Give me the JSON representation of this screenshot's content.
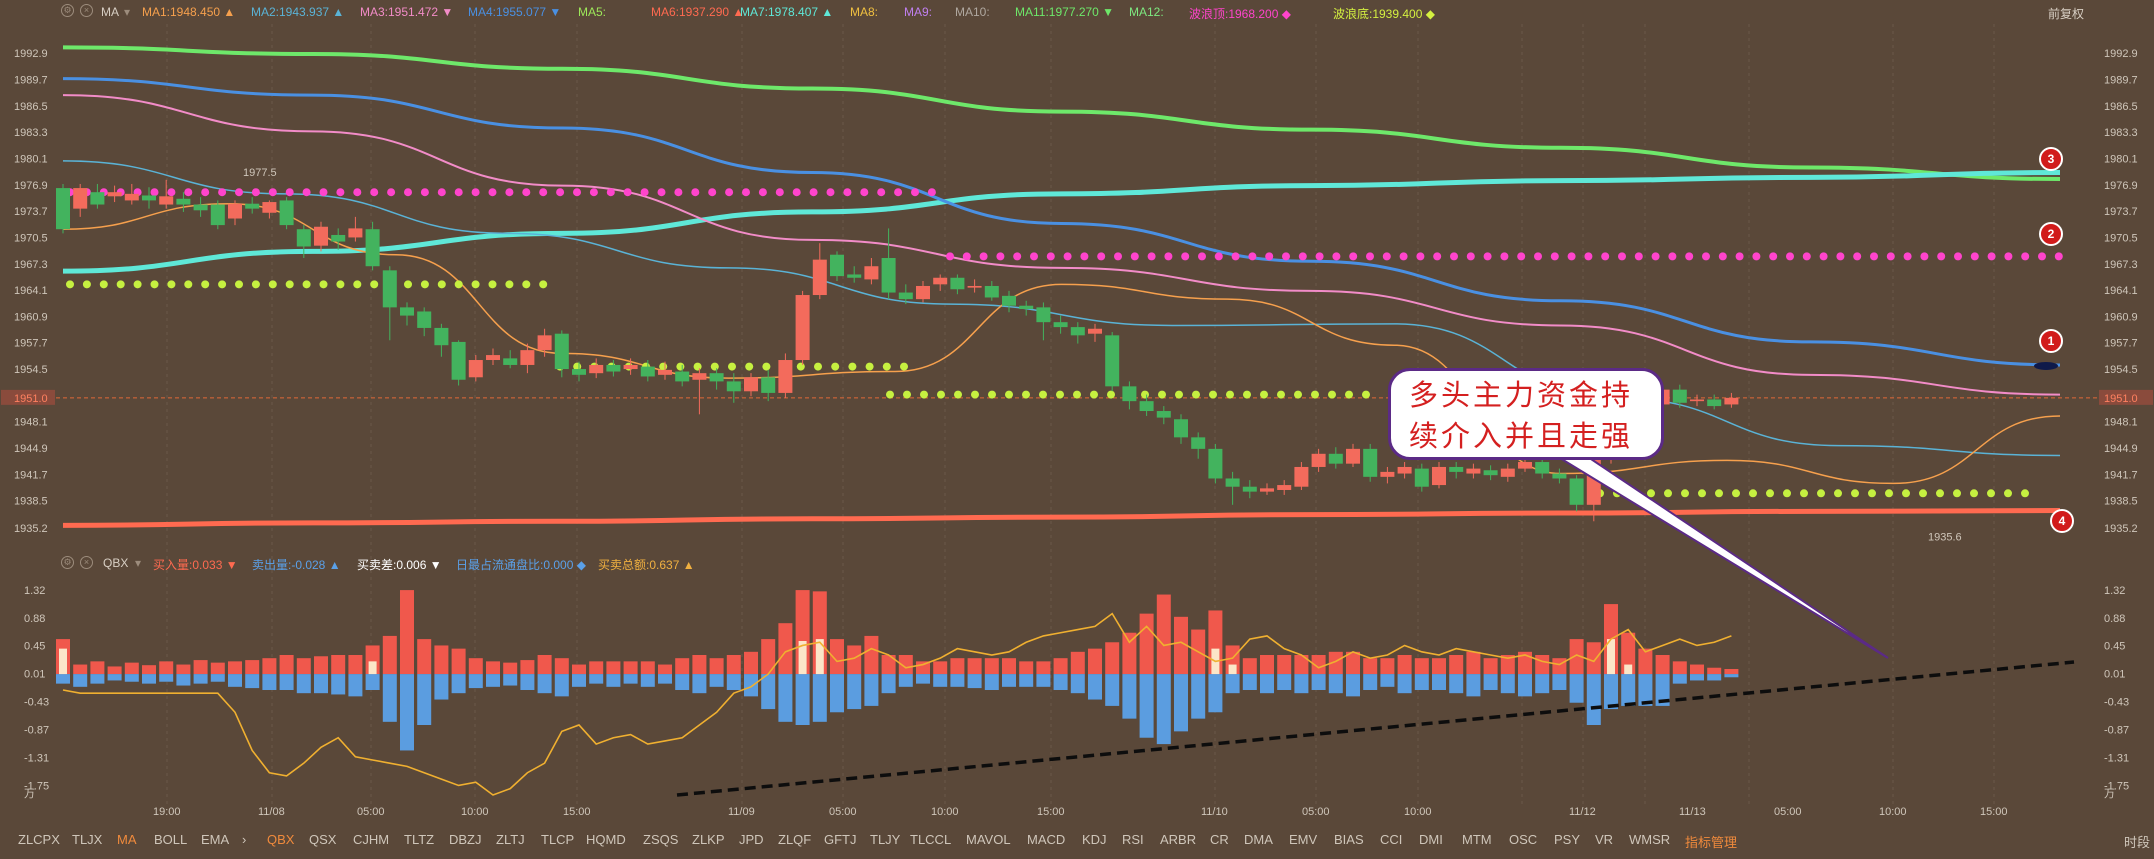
{
  "top_legend": {
    "indicator": "MA",
    "items": [
      {
        "label": "MA1:",
        "value": "1948.450",
        "arrow": "▲",
        "color": "#f6a04d"
      },
      {
        "label": "MA2:",
        "value": "1943.937",
        "arrow": "▲",
        "color": "#5ab3d6"
      },
      {
        "label": "MA3:",
        "value": "1951.472",
        "arrow": "▼",
        "color": "#f28cc8"
      },
      {
        "label": "MA4:",
        "value": "1955.077",
        "arrow": "▼",
        "color": "#4a90e2"
      },
      {
        "label": "MA5:",
        "value": "",
        "arrow": "",
        "color": "#9ee85a"
      },
      {
        "label": "MA6:",
        "value": "1937.290",
        "arrow": "▲",
        "color": "#ff6a50"
      },
      {
        "label": "MA7:",
        "value": "1978.407",
        "arrow": "▲",
        "color": "#5fe8d8"
      },
      {
        "label": "MA8:",
        "value": "",
        "arrow": "",
        "color": "#f0c040"
      },
      {
        "label": "MA9:",
        "value": "",
        "arrow": "",
        "color": "#c080f0"
      },
      {
        "label": "MA10:",
        "value": "",
        "arrow": "",
        "color": "#b0a8a0"
      },
      {
        "label": "MA11:",
        "value": "1977.270",
        "arrow": "▼",
        "color": "#6ee86a"
      },
      {
        "label": "MA12:",
        "value": "",
        "arrow": "",
        "color": "#7ee880"
      },
      {
        "label": "波浪顶:",
        "value": "1968.200",
        "arrow": "◆",
        "color": "#ff44cc"
      },
      {
        "label": "波浪底:",
        "value": "1939.400",
        "arrow": "◆",
        "color": "#d4f040"
      }
    ],
    "right_label": "前复权"
  },
  "sub_legend": {
    "indicator": "QBX",
    "items": [
      {
        "label": "买入量:",
        "value": "0.033",
        "arrow": "▼",
        "color": "#ff6a50"
      },
      {
        "label": "卖出量:",
        "value": "-0.028",
        "arrow": "▲",
        "color": "#5aa0e8"
      },
      {
        "label": "买卖差:",
        "value": "0.006",
        "arrow": "▼",
        "color": "#ffffff"
      },
      {
        "label": "日最占流通盘比:",
        "value": "0.000",
        "arrow": "◆",
        "color": "#5aa0e8"
      },
      {
        "label": "买卖总额:",
        "value": "0.637",
        "arrow": "▲",
        "color": "#f0b040"
      }
    ]
  },
  "price_axis": {
    "ticks": [
      "1992.9",
      "1989.7",
      "1986.5",
      "1983.3",
      "1980.1",
      "1976.9",
      "1973.7",
      "1970.5",
      "1967.3",
      "1964.1",
      "1960.9",
      "1957.7",
      "1954.5",
      "1951.0",
      "1948.1",
      "1944.9",
      "1941.7",
      "1938.5",
      "1935.2"
    ],
    "current_price": "1951.0"
  },
  "sub_axis": {
    "ticks": [
      "1.32",
      "0.88",
      "0.45",
      "0.01",
      "-0.43",
      "-0.87",
      "-1.31",
      "-1.75",
      "万"
    ]
  },
  "time_axis": {
    "labels": [
      "19:00",
      "11/08",
      "05:00",
      "10:00",
      "15:00",
      "11/09",
      "05:00",
      "10:00",
      "15:00",
      "11/10",
      "05:00",
      "10:00",
      "11/12",
      "11/13",
      "05:00",
      "10:00",
      "15:00"
    ],
    "right_label": "时段"
  },
  "annotations": {
    "high_label": "1977.5",
    "low_label": "1935.6",
    "callout_line1": "多头主力资金持",
    "callout_line2": "续介入并且走强",
    "badges": [
      "1",
      "2",
      "3",
      "4"
    ]
  },
  "tabs": [
    "ZLCPX",
    "TLJX",
    "MA",
    "BOLL",
    "EMA",
    "›",
    "QBX",
    "QSX",
    "CJHM",
    "TLTZ",
    "DBZJ",
    "ZLTJ",
    "TLCP",
    "HQMD",
    "ZSQS",
    "ZLKP",
    "JPD",
    "ZLQF",
    "GFTJ",
    "TLJY",
    "TLCCL",
    "MAVOL",
    "MACD",
    "KDJ",
    "RSI",
    "ARBR",
    "CR",
    "DMA",
    "EMV",
    "BIAS",
    "CCI",
    "DMI",
    "MTM",
    "OSC",
    "PSY",
    "VR",
    "WMSR",
    "指标管理"
  ],
  "chart_data": [
    {
      "type": "candlestick",
      "ylim": [
        1933.6,
        1994.5
      ],
      "candles": [
        [
          1976.5,
          1971.5,
          1977.0,
          1971.0
        ],
        [
          1974.0,
          1976.5,
          1977.0,
          1973.0
        ],
        [
          1976.0,
          1974.5,
          1977.0,
          1974.0
        ],
        [
          1975.5,
          1976.0,
          1976.8,
          1974.8
        ],
        [
          1975.0,
          1975.8,
          1977.0,
          1974.5
        ],
        [
          1975.6,
          1975.0,
          1976.6,
          1974.0
        ],
        [
          1974.5,
          1975.5,
          1977.5,
          1974.0
        ],
        [
          1975.2,
          1974.5,
          1976.0,
          1973.6
        ],
        [
          1974.5,
          1973.8,
          1975.4,
          1973.0
        ],
        [
          1974.5,
          1972.0,
          1975.0,
          1971.5
        ],
        [
          1972.8,
          1974.6,
          1975.0,
          1972.0
        ],
        [
          1974.6,
          1974.0,
          1975.4,
          1973.4
        ],
        [
          1973.5,
          1974.8,
          1975.0,
          1972.8
        ],
        [
          1975.0,
          1972.0,
          1975.4,
          1971.5
        ],
        [
          1971.5,
          1969.4,
          1972.0,
          1968.0
        ],
        [
          1969.5,
          1971.8,
          1972.4,
          1968.8
        ],
        [
          1970.8,
          1970.0,
          1971.6,
          1969.0
        ],
        [
          1970.5,
          1971.6,
          1973.0,
          1970.0
        ],
        [
          1971.5,
          1967.0,
          1972.4,
          1966.5
        ],
        [
          1966.5,
          1962.0,
          1967.0,
          1958.0
        ],
        [
          1962.0,
          1961.0,
          1962.6,
          1959.8
        ],
        [
          1961.5,
          1959.5,
          1962.0,
          1958.5
        ],
        [
          1959.5,
          1957.4,
          1960.0,
          1956.0
        ],
        [
          1957.8,
          1953.2,
          1958.0,
          1952.5
        ],
        [
          1953.5,
          1955.6,
          1956.2,
          1953.0
        ],
        [
          1955.6,
          1956.2,
          1957.0,
          1955.0
        ],
        [
          1955.8,
          1955.0,
          1956.8,
          1954.6
        ],
        [
          1955.0,
          1956.8,
          1957.6,
          1954.0
        ],
        [
          1956.8,
          1958.6,
          1959.4,
          1956.0
        ],
        [
          1958.8,
          1954.5,
          1959.2,
          1953.5
        ],
        [
          1954.5,
          1953.8,
          1955.4,
          1953.0
        ],
        [
          1954.0,
          1955.0,
          1955.8,
          1953.4
        ],
        [
          1955.0,
          1954.2,
          1955.6,
          1953.6
        ],
        [
          1954.5,
          1955.0,
          1955.8,
          1953.8
        ],
        [
          1954.8,
          1953.6,
          1955.6,
          1953.0
        ],
        [
          1953.8,
          1954.4,
          1955.4,
          1953.2
        ],
        [
          1954.2,
          1953.0,
          1955.0,
          1952.4
        ],
        [
          1953.2,
          1954.0,
          1954.6,
          1949.0
        ],
        [
          1954.0,
          1953.0,
          1954.6,
          1952.0
        ],
        [
          1953.0,
          1951.8,
          1954.0,
          1950.4
        ],
        [
          1951.8,
          1953.5,
          1954.0,
          1951.2
        ],
        [
          1953.5,
          1951.6,
          1954.4,
          1950.6
        ],
        [
          1951.6,
          1955.6,
          1956.4,
          1951.0
        ],
        [
          1955.6,
          1963.5,
          1964.0,
          1955.0
        ],
        [
          1963.5,
          1967.8,
          1969.8,
          1963.0
        ],
        [
          1968.4,
          1965.8,
          1968.8,
          1965.2
        ],
        [
          1966.0,
          1965.6,
          1967.0,
          1965.0
        ],
        [
          1965.4,
          1967.0,
          1968.0,
          1964.8
        ],
        [
          1968.0,
          1963.8,
          1971.6,
          1963.0
        ],
        [
          1963.8,
          1963.0,
          1964.8,
          1962.4
        ],
        [
          1963.0,
          1964.6,
          1965.2,
          1962.6
        ],
        [
          1964.8,
          1965.6,
          1966.0,
          1964.0
        ],
        [
          1965.6,
          1964.2,
          1966.0,
          1963.6
        ],
        [
          1964.4,
          1964.6,
          1965.4,
          1963.8
        ],
        [
          1964.6,
          1963.2,
          1965.2,
          1962.8
        ],
        [
          1963.4,
          1962.2,
          1964.0,
          1961.4
        ],
        [
          1962.2,
          1961.8,
          1962.8,
          1961.0
        ],
        [
          1962.0,
          1960.2,
          1962.6,
          1958.0
        ],
        [
          1960.2,
          1959.6,
          1961.0,
          1958.8
        ],
        [
          1959.6,
          1958.6,
          1960.2,
          1957.6
        ],
        [
          1958.8,
          1959.4,
          1960.0,
          1957.8
        ],
        [
          1958.6,
          1952.4,
          1959.0,
          1951.8
        ],
        [
          1952.4,
          1950.6,
          1953.0,
          1949.6
        ],
        [
          1950.6,
          1949.4,
          1951.4,
          1948.8
        ],
        [
          1949.4,
          1948.6,
          1950.0,
          1947.8
        ],
        [
          1948.4,
          1946.2,
          1949.0,
          1945.4
        ],
        [
          1946.2,
          1944.8,
          1946.8,
          1943.6
        ],
        [
          1944.8,
          1941.2,
          1945.4,
          1940.6
        ],
        [
          1941.2,
          1940.2,
          1942.0,
          1938.0
        ],
        [
          1940.2,
          1939.6,
          1941.0,
          1938.8
        ],
        [
          1939.6,
          1940.0,
          1940.6,
          1939.2
        ],
        [
          1939.8,
          1940.4,
          1941.0,
          1939.2
        ],
        [
          1940.2,
          1942.6,
          1943.2,
          1939.8
        ],
        [
          1942.6,
          1944.2,
          1944.8,
          1942.0
        ],
        [
          1944.2,
          1943.0,
          1945.0,
          1942.4
        ],
        [
          1943.0,
          1944.8,
          1945.4,
          1942.6
        ],
        [
          1944.8,
          1941.4,
          1945.4,
          1940.8
        ],
        [
          1941.4,
          1942.0,
          1942.6,
          1940.6
        ],
        [
          1941.8,
          1942.6,
          1943.2,
          1941.2
        ],
        [
          1942.4,
          1940.2,
          1943.0,
          1939.6
        ],
        [
          1940.4,
          1942.6,
          1943.2,
          1940.0
        ],
        [
          1942.6,
          1942.0,
          1943.2,
          1941.2
        ],
        [
          1941.8,
          1942.4,
          1943.0,
          1941.2
        ],
        [
          1942.2,
          1941.6,
          1942.8,
          1941.0
        ],
        [
          1941.4,
          1942.4,
          1943.0,
          1940.8
        ],
        [
          1942.4,
          1943.2,
          1944.0,
          1942.0
        ],
        [
          1943.2,
          1941.8,
          1943.8,
          1941.2
        ],
        [
          1941.8,
          1941.2,
          1942.4,
          1940.6
        ],
        [
          1941.2,
          1938.0,
          1941.6,
          1937.2
        ],
        [
          1938.0,
          1943.6,
          1944.0,
          1936.0
        ],
        [
          1943.6,
          1950.6,
          1951.0,
          1943.0
        ],
        [
          1950.6,
          1951.0,
          1952.2,
          1949.8
        ],
        [
          1951.2,
          1950.0,
          1951.8,
          1949.4
        ],
        [
          1950.2,
          1952.0,
          1952.4,
          1949.8
        ],
        [
          1952.0,
          1950.4,
          1952.6,
          1949.8
        ],
        [
          1950.6,
          1950.8,
          1951.4,
          1950.0
        ],
        [
          1950.8,
          1950.0,
          1951.4,
          1949.6
        ],
        [
          1950.2,
          1951.0,
          1951.6,
          1949.8
        ]
      ],
      "sub_levels": [
        1976.0,
        1964.8
      ],
      "wave_top": [
        1976.0,
        1968.2
      ],
      "wave_bottom": [
        1964.8,
        1954.8,
        1951.4,
        1939.4
      ]
    },
    {
      "type": "bar_line",
      "ylim": [
        -1.9,
        1.4
      ],
      "buy": [
        0.55,
        0.15,
        0.2,
        0.12,
        0.18,
        0.14,
        0.2,
        0.15,
        0.22,
        0.18,
        0.2,
        0.22,
        0.25,
        0.3,
        0.25,
        0.28,
        0.3,
        0.3,
        0.45,
        0.6,
        1.32,
        0.55,
        0.45,
        0.4,
        0.25,
        0.2,
        0.18,
        0.22,
        0.3,
        0.25,
        0.15,
        0.2,
        0.2,
        0.2,
        0.2,
        0.15,
        0.25,
        0.3,
        0.25,
        0.3,
        0.35,
        0.55,
        0.8,
        1.32,
        1.3,
        0.55,
        0.45,
        0.6,
        0.3,
        0.3,
        0.2,
        0.2,
        0.25,
        0.25,
        0.25,
        0.25,
        0.2,
        0.2,
        0.25,
        0.35,
        0.4,
        0.5,
        0.65,
        0.95,
        1.25,
        0.9,
        0.7,
        1.0,
        0.45,
        0.25,
        0.3,
        0.3,
        0.3,
        0.3,
        0.35,
        0.35,
        0.25,
        0.25,
        0.3,
        0.25,
        0.25,
        0.3,
        0.35,
        0.25,
        0.3,
        0.35,
        0.3,
        0.25,
        0.55,
        0.5,
        1.1,
        0.65,
        0.4,
        0.3,
        0.2,
        0.15,
        0.1,
        0.08
      ],
      "sell": [
        -0.15,
        -0.2,
        -0.15,
        -0.1,
        -0.12,
        -0.15,
        -0.12,
        -0.18,
        -0.15,
        -0.12,
        -0.2,
        -0.22,
        -0.25,
        -0.25,
        -0.3,
        -0.3,
        -0.32,
        -0.35,
        -0.25,
        -0.75,
        -1.2,
        -0.8,
        -0.4,
        -0.3,
        -0.22,
        -0.2,
        -0.18,
        -0.25,
        -0.3,
        -0.35,
        -0.2,
        -0.15,
        -0.2,
        -0.15,
        -0.2,
        -0.15,
        -0.25,
        -0.3,
        -0.2,
        -0.25,
        -0.35,
        -0.55,
        -0.75,
        -0.8,
        -0.75,
        -0.6,
        -0.55,
        -0.5,
        -0.3,
        -0.2,
        -0.15,
        -0.2,
        -0.2,
        -0.22,
        -0.25,
        -0.2,
        -0.2,
        -0.2,
        -0.25,
        -0.3,
        -0.4,
        -0.5,
        -0.7,
        -1.0,
        -1.1,
        -0.9,
        -0.7,
        -0.6,
        -0.3,
        -0.25,
        -0.3,
        -0.25,
        -0.3,
        -0.25,
        -0.3,
        -0.35,
        -0.25,
        -0.2,
        -0.3,
        -0.25,
        -0.25,
        -0.3,
        -0.35,
        -0.25,
        -0.3,
        -0.35,
        -0.3,
        -0.25,
        -0.45,
        -0.8,
        -0.55,
        -0.5,
        -0.5,
        -0.5,
        -0.15,
        -0.1,
        -0.1,
        -0.05
      ],
      "line": [
        -0.25,
        -0.3,
        -0.3,
        -0.3,
        -0.3,
        -0.3,
        -0.3,
        -0.3,
        -0.3,
        -0.3,
        -0.6,
        -1.2,
        -1.55,
        -1.6,
        -1.4,
        -1.15,
        -1.0,
        -1.3,
        -1.35,
        -1.4,
        -1.45,
        -1.55,
        -1.65,
        -1.75,
        -1.7,
        -1.9,
        -1.8,
        -1.55,
        -1.4,
        -0.9,
        -0.8,
        -1.1,
        -1.0,
        -0.95,
        -1.1,
        -1.05,
        -1.0,
        -0.8,
        -0.6,
        -0.3,
        -0.2,
        0.0,
        0.35,
        0.45,
        0.5,
        0.2,
        0.25,
        0.4,
        0.3,
        0.1,
        0.15,
        0.25,
        0.4,
        0.35,
        0.3,
        0.35,
        0.5,
        0.6,
        0.65,
        0.7,
        0.75,
        0.95,
        0.5,
        0.75,
        0.45,
        0.5,
        0.35,
        0.2,
        0.25,
        0.55,
        0.6,
        0.4,
        0.3,
        0.1,
        0.2,
        0.35,
        0.25,
        0.3,
        0.45,
        0.35,
        0.3,
        0.4,
        0.35,
        0.3,
        0.25,
        0.3,
        0.2,
        0.15,
        0.3,
        0.2,
        0.55,
        0.7,
        0.35,
        0.45,
        0.55,
        0.45,
        0.5,
        0.6
      ]
    }
  ]
}
